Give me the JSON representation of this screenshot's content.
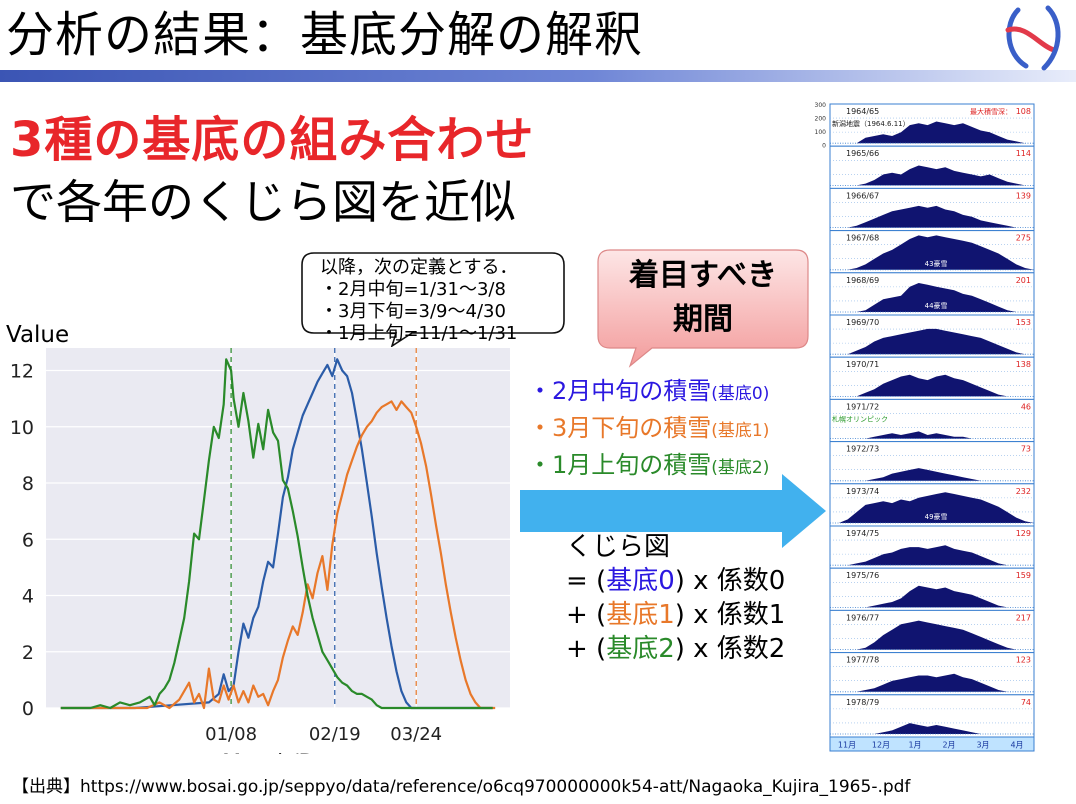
{
  "page": {
    "title": "分析の結果：基底分解の解釈",
    "headline": "3種の基底の組み合わせ",
    "subline": "で各年のくじら図を近似",
    "source": "【出典】https://www.bosai.go.jp/seppyo/data/reference/o6cq970000000k54-att/Nagaoka_Kujira_1965-.pdf"
  },
  "callout": {
    "lines": [
      "以降，次の定義とする．",
      "・2月中旬=1/31～3/8",
      "・3月下旬=3/9～4/30",
      "・1月上旬=11/1～1/31"
    ]
  },
  "focus": {
    "line1": "着目すべき",
    "line2": "期間"
  },
  "legend": [
    {
      "main": "・2月中旬の積雪",
      "sub": "(基底0)",
      "color": "#2b18e0"
    },
    {
      "main": "・3月下旬の積雪",
      "sub": "(基底1)",
      "color": "#e8782a"
    },
    {
      "main": "・1月上旬の積雪",
      "sub": "(基底2)",
      "color": "#2a8a2a"
    }
  ],
  "formula": {
    "line1": "くじら図",
    "l2_pre": "= (",
    "l2_basis": "基底0",
    "l2_post": ") x 係数0",
    "l3_pre": "+ (",
    "l3_basis": "基底1",
    "l3_post": ") x 係数1",
    "l4_pre": "+ (",
    "l4_basis": "基底2",
    "l4_post": ") x 係数2"
  },
  "chart_data": {
    "type": "line",
    "ylabel": "Value",
    "xlabel": "Month/Day",
    "ylim": [
      0,
      12.8
    ],
    "yticks": [
      0,
      2,
      4,
      6,
      8,
      10,
      12
    ],
    "xticks": [
      {
        "label": "01/08",
        "day": 69
      },
      {
        "label": "02/19",
        "day": 111
      },
      {
        "label": "03/24",
        "day": 144
      }
    ],
    "xlim": [
      -6,
      182
    ],
    "grid": true,
    "vlines": [
      {
        "day": 69,
        "color": "#2a8a2a"
      },
      {
        "day": 111,
        "color": "#2b5ca8"
      },
      {
        "day": 144,
        "color": "#e8782a"
      }
    ],
    "series": [
      {
        "color": "#2b5ca8",
        "points": [
          [
            0,
            0
          ],
          [
            30,
            0
          ],
          [
            45,
            0.1
          ],
          [
            60,
            0.2
          ],
          [
            64,
            0.5
          ],
          [
            66,
            1.2
          ],
          [
            68,
            0.6
          ],
          [
            70,
            0.8
          ],
          [
            72,
            2.0
          ],
          [
            74,
            3.0
          ],
          [
            76,
            2.5
          ],
          [
            78,
            3.2
          ],
          [
            80,
            3.6
          ],
          [
            82,
            4.5
          ],
          [
            84,
            5.2
          ],
          [
            86,
            5.0
          ],
          [
            88,
            6.2
          ],
          [
            90,
            7.5
          ],
          [
            92,
            8.2
          ],
          [
            94,
            9.2
          ],
          [
            96,
            9.8
          ],
          [
            98,
            10.4
          ],
          [
            100,
            10.8
          ],
          [
            102,
            11.2
          ],
          [
            104,
            11.6
          ],
          [
            106,
            11.9
          ],
          [
            108,
            12.2
          ],
          [
            110,
            11.8
          ],
          [
            112,
            12.4
          ],
          [
            114,
            12.0
          ],
          [
            116,
            11.8
          ],
          [
            118,
            11.2
          ],
          [
            120,
            10.2
          ],
          [
            122,
            9.2
          ],
          [
            124,
            8.0
          ],
          [
            126,
            6.8
          ],
          [
            128,
            5.5
          ],
          [
            130,
            4.3
          ],
          [
            132,
            3.2
          ],
          [
            134,
            2.2
          ],
          [
            136,
            1.3
          ],
          [
            138,
            0.6
          ],
          [
            140,
            0.2
          ],
          [
            142,
            0
          ],
          [
            175,
            0
          ]
        ]
      },
      {
        "color": "#e8782a",
        "points": [
          [
            0,
            0
          ],
          [
            35,
            0
          ],
          [
            40,
            0.2
          ],
          [
            44,
            0
          ],
          [
            48,
            0.3
          ],
          [
            52,
            0.9
          ],
          [
            54,
            0.2
          ],
          [
            56,
            0.5
          ],
          [
            58,
            0
          ],
          [
            60,
            1.4
          ],
          [
            62,
            0.3
          ],
          [
            64,
            0.2
          ],
          [
            66,
            0.8
          ],
          [
            68,
            0.3
          ],
          [
            70,
            0.8
          ],
          [
            72,
            0.2
          ],
          [
            74,
            0.6
          ],
          [
            76,
            0.2
          ],
          [
            78,
            0.8
          ],
          [
            80,
            0.4
          ],
          [
            82,
            0.5
          ],
          [
            84,
            0.1
          ],
          [
            86,
            0.6
          ],
          [
            88,
            1.0
          ],
          [
            90,
            1.8
          ],
          [
            92,
            2.4
          ],
          [
            94,
            2.9
          ],
          [
            96,
            2.6
          ],
          [
            98,
            3.4
          ],
          [
            100,
            4.4
          ],
          [
            102,
            3.9
          ],
          [
            104,
            4.8
          ],
          [
            106,
            5.4
          ],
          [
            108,
            4.2
          ],
          [
            110,
            5.8
          ],
          [
            112,
            6.9
          ],
          [
            114,
            7.6
          ],
          [
            116,
            8.3
          ],
          [
            118,
            8.8
          ],
          [
            120,
            9.3
          ],
          [
            122,
            9.7
          ],
          [
            124,
            10.0
          ],
          [
            126,
            10.2
          ],
          [
            128,
            10.5
          ],
          [
            130,
            10.7
          ],
          [
            132,
            10.8
          ],
          [
            134,
            10.9
          ],
          [
            136,
            10.6
          ],
          [
            138,
            10.9
          ],
          [
            140,
            10.7
          ],
          [
            142,
            10.5
          ],
          [
            144,
            10.0
          ],
          [
            146,
            9.4
          ],
          [
            148,
            8.6
          ],
          [
            150,
            7.6
          ],
          [
            152,
            6.5
          ],
          [
            154,
            5.5
          ],
          [
            156,
            4.4
          ],
          [
            158,
            3.4
          ],
          [
            160,
            2.5
          ],
          [
            162,
            1.7
          ],
          [
            164,
            1.0
          ],
          [
            166,
            0.5
          ],
          [
            168,
            0.2
          ],
          [
            170,
            0
          ],
          [
            176,
            0
          ]
        ]
      },
      {
        "color": "#2a8a2a",
        "points": [
          [
            0,
            0
          ],
          [
            12,
            0
          ],
          [
            16,
            0.1
          ],
          [
            20,
            0
          ],
          [
            24,
            0.2
          ],
          [
            28,
            0.1
          ],
          [
            32,
            0.2
          ],
          [
            36,
            0.4
          ],
          [
            38,
            0.1
          ],
          [
            40,
            0.5
          ],
          [
            42,
            0.7
          ],
          [
            44,
            1.0
          ],
          [
            46,
            1.6
          ],
          [
            48,
            2.4
          ],
          [
            50,
            3.2
          ],
          [
            52,
            4.5
          ],
          [
            54,
            6.2
          ],
          [
            56,
            6.0
          ],
          [
            58,
            7.4
          ],
          [
            60,
            8.8
          ],
          [
            62,
            10.0
          ],
          [
            64,
            9.6
          ],
          [
            66,
            10.8
          ],
          [
            67,
            12.4
          ],
          [
            69,
            12.0
          ],
          [
            70,
            11.0
          ],
          [
            72,
            10.0
          ],
          [
            74,
            11.2
          ],
          [
            76,
            10.2
          ],
          [
            78,
            8.9
          ],
          [
            80,
            10.1
          ],
          [
            82,
            9.2
          ],
          [
            84,
            10.6
          ],
          [
            86,
            9.8
          ],
          [
            88,
            9.5
          ],
          [
            90,
            8.1
          ],
          [
            92,
            7.8
          ],
          [
            94,
            7.0
          ],
          [
            96,
            6.1
          ],
          [
            98,
            5.0
          ],
          [
            100,
            4.0
          ],
          [
            102,
            3.2
          ],
          [
            104,
            2.6
          ],
          [
            106,
            2.0
          ],
          [
            108,
            1.7
          ],
          [
            110,
            1.4
          ],
          [
            112,
            1.1
          ],
          [
            114,
            0.9
          ],
          [
            116,
            0.8
          ],
          [
            118,
            0.6
          ],
          [
            120,
            0.5
          ],
          [
            122,
            0.5
          ],
          [
            124,
            0.4
          ],
          [
            126,
            0.3
          ],
          [
            128,
            0.1
          ],
          [
            130,
            0
          ],
          [
            175,
            0
          ]
        ]
      }
    ]
  },
  "whale_panel": {
    "top_scale": [
      "300",
      "200",
      "100",
      "0"
    ],
    "months": [
      "11月",
      "12月",
      "1月",
      "2月",
      "3月",
      "4月"
    ],
    "rows": [
      {
        "year": "1964/65",
        "max": "108",
        "note_right": "最大積雪深",
        "note_left": "新潟地震（1964.6.11）",
        "center": "",
        "profile": [
          0,
          0,
          0,
          0,
          0.15,
          0.2,
          0.25,
          0.2,
          0.3,
          0.5,
          0.55,
          0.5,
          0.6,
          0.55,
          0.5,
          0.55,
          0.45,
          0.35,
          0.3,
          0.2,
          0.1,
          0.05,
          0,
          0
        ]
      },
      {
        "year": "1965/66",
        "max": "114",
        "note_right": "",
        "note_left": "",
        "center": "",
        "profile": [
          0,
          0,
          0,
          0,
          0.05,
          0.15,
          0.3,
          0.35,
          0.3,
          0.45,
          0.55,
          0.5,
          0.45,
          0.5,
          0.4,
          0.35,
          0.3,
          0.25,
          0.3,
          0.2,
          0.1,
          0.05,
          0,
          0
        ]
      },
      {
        "year": "1966/67",
        "max": "139",
        "note_right": "",
        "note_left": "",
        "center": "",
        "profile": [
          0,
          0,
          0,
          0.05,
          0.15,
          0.25,
          0.35,
          0.45,
          0.5,
          0.55,
          0.6,
          0.55,
          0.6,
          0.5,
          0.45,
          0.35,
          0.3,
          0.2,
          0.15,
          0.1,
          0.05,
          0,
          0,
          0
        ]
      },
      {
        "year": "1967/68",
        "max": "275",
        "note_right": "",
        "note_left": "",
        "center": "43豪雪",
        "profile": [
          0,
          0,
          0,
          0.05,
          0.15,
          0.3,
          0.45,
          0.55,
          0.7,
          0.85,
          0.95,
          0.9,
          0.95,
          0.9,
          0.85,
          0.8,
          0.75,
          0.65,
          0.55,
          0.45,
          0.3,
          0.15,
          0.05,
          0
        ]
      },
      {
        "year": "1968/69",
        "max": "201",
        "note_right": "",
        "note_left": "",
        "center": "44豪雪",
        "profile": [
          0,
          0,
          0,
          0,
          0.05,
          0.2,
          0.35,
          0.4,
          0.45,
          0.7,
          0.8,
          0.75,
          0.7,
          0.65,
          0.6,
          0.5,
          0.45,
          0.35,
          0.25,
          0.15,
          0.05,
          0,
          0,
          0
        ]
      },
      {
        "year": "1969/70",
        "max": "153",
        "note_right": "",
        "note_left": "",
        "center": "",
        "profile": [
          0,
          0,
          0,
          0.1,
          0.2,
          0.35,
          0.45,
          0.5,
          0.55,
          0.6,
          0.65,
          0.7,
          0.7,
          0.65,
          0.6,
          0.55,
          0.5,
          0.45,
          0.35,
          0.25,
          0.15,
          0.05,
          0,
          0
        ]
      },
      {
        "year": "1970/71",
        "max": "138",
        "note_right": "",
        "note_left": "",
        "center": "",
        "profile": [
          0,
          0,
          0,
          0,
          0.1,
          0.2,
          0.35,
          0.45,
          0.55,
          0.6,
          0.5,
          0.45,
          0.55,
          0.6,
          0.5,
          0.45,
          0.35,
          0.25,
          0.15,
          0.05,
          0,
          0,
          0,
          0
        ]
      },
      {
        "year": "1971/72",
        "max": "46",
        "note_right": "",
        "note_left": "札幌オリンピック",
        "center": "",
        "profile": [
          0,
          0,
          0,
          0,
          0,
          0.05,
          0.1,
          0.15,
          0.1,
          0.15,
          0.2,
          0.1,
          0.15,
          0.1,
          0.05,
          0.05,
          0,
          0,
          0,
          0,
          0,
          0,
          0,
          0
        ]
      },
      {
        "year": "1972/73",
        "max": "73",
        "note_right": "",
        "note_left": "",
        "center": "",
        "profile": [
          0,
          0,
          0,
          0,
          0,
          0.05,
          0.1,
          0.2,
          0.25,
          0.3,
          0.35,
          0.3,
          0.25,
          0.2,
          0.15,
          0.1,
          0.05,
          0,
          0,
          0,
          0,
          0,
          0,
          0
        ]
      },
      {
        "year": "1973/74",
        "max": "232",
        "note_right": "",
        "note_left": "",
        "center": "49豪雪",
        "profile": [
          0,
          0,
          0.1,
          0.3,
          0.5,
          0.55,
          0.6,
          0.55,
          0.65,
          0.6,
          0.7,
          0.75,
          0.8,
          0.85,
          0.8,
          0.75,
          0.7,
          0.65,
          0.55,
          0.45,
          0.3,
          0.15,
          0.05,
          0
        ]
      },
      {
        "year": "1974/75",
        "max": "129",
        "note_right": "",
        "note_left": "",
        "center": "",
        "profile": [
          0,
          0,
          0,
          0.05,
          0.1,
          0.2,
          0.3,
          0.35,
          0.45,
          0.5,
          0.5,
          0.45,
          0.5,
          0.55,
          0.45,
          0.4,
          0.35,
          0.25,
          0.15,
          0.05,
          0,
          0,
          0,
          0
        ]
      },
      {
        "year": "1975/76",
        "max": "159",
        "note_right": "",
        "note_left": "",
        "center": "",
        "profile": [
          0,
          0,
          0,
          0,
          0,
          0.05,
          0.1,
          0.15,
          0.25,
          0.45,
          0.6,
          0.55,
          0.5,
          0.55,
          0.45,
          0.4,
          0.35,
          0.25,
          0.15,
          0.05,
          0,
          0,
          0,
          0
        ]
      },
      {
        "year": "1976/77",
        "max": "217",
        "note_right": "",
        "note_left": "",
        "center": "",
        "profile": [
          0,
          0,
          0,
          0,
          0.05,
          0.2,
          0.4,
          0.55,
          0.7,
          0.75,
          0.8,
          0.75,
          0.7,
          0.65,
          0.6,
          0.55,
          0.45,
          0.35,
          0.25,
          0.15,
          0.05,
          0,
          0,
          0
        ]
      },
      {
        "year": "1977/78",
        "max": "123",
        "note_right": "",
        "note_left": "",
        "center": "",
        "profile": [
          0,
          0,
          0,
          0,
          0.05,
          0.1,
          0.2,
          0.3,
          0.35,
          0.4,
          0.45,
          0.45,
          0.4,
          0.45,
          0.5,
          0.4,
          0.35,
          0.25,
          0.15,
          0.05,
          0,
          0,
          0,
          0
        ]
      },
      {
        "year": "1978/79",
        "max": "74",
        "note_right": "",
        "note_left": "",
        "center": "",
        "profile": [
          0,
          0,
          0,
          0,
          0,
          0,
          0.05,
          0.1,
          0.2,
          0.3,
          0.25,
          0.2,
          0.25,
          0.2,
          0.15,
          0.1,
          0.05,
          0,
          0,
          0,
          0,
          0,
          0,
          0
        ]
      }
    ]
  }
}
